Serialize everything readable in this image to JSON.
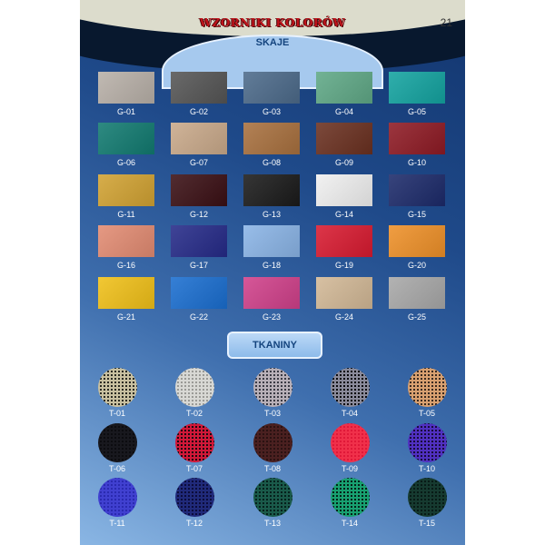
{
  "header": {
    "title": "WZORNIKI KOLORÓW",
    "page_number": "21",
    "section1": "SKAJE",
    "section2": "TKANINY"
  },
  "skaje": [
    {
      "code": "G-01",
      "color": "#b8b0a8"
    },
    {
      "code": "G-02",
      "color": "#555555"
    },
    {
      "code": "G-03",
      "color": "#4c6a8a"
    },
    {
      "code": "G-04",
      "color": "#5fa886"
    },
    {
      "code": "G-05",
      "color": "#13a3a0"
    },
    {
      "code": "G-06",
      "color": "#117a70"
    },
    {
      "code": "G-07",
      "color": "#c9a98a"
    },
    {
      "code": "G-08",
      "color": "#a8703e"
    },
    {
      "code": "G-09",
      "color": "#6a3020"
    },
    {
      "code": "G-10",
      "color": "#8e1a24"
    },
    {
      "code": "G-11",
      "color": "#d1a232"
    },
    {
      "code": "G-12",
      "color": "#3a0f14"
    },
    {
      "code": "G-13",
      "color": "#1a1a1a"
    },
    {
      "code": "G-14",
      "color": "#f0f0f0"
    },
    {
      "code": "G-15",
      "color": "#1c2a6a"
    },
    {
      "code": "G-16",
      "color": "#e28b72"
    },
    {
      "code": "G-17",
      "color": "#252a88"
    },
    {
      "code": "G-18",
      "color": "#8ab4e6"
    },
    {
      "code": "G-19",
      "color": "#d81a30"
    },
    {
      "code": "G-20",
      "color": "#ee9028"
    },
    {
      "code": "G-21",
      "color": "#f0c018"
    },
    {
      "code": "G-22",
      "color": "#1a6ed0"
    },
    {
      "code": "G-23",
      "color": "#d0408a"
    },
    {
      "code": "G-24",
      "color": "#d2b896"
    },
    {
      "code": "G-25",
      "color": "#a8a8a8"
    }
  ],
  "tkaniny": [
    {
      "code": "T-01",
      "color": "#2a2a22",
      "thread": "#c8c0a0"
    },
    {
      "code": "T-02",
      "color": "#9a9a96",
      "thread": "#d8d8d4"
    },
    {
      "code": "T-03",
      "color": "#3a3a44",
      "thread": "#b8b0b8"
    },
    {
      "code": "T-04",
      "color": "#0a0a0e",
      "thread": "#8a8a9a"
    },
    {
      "code": "T-05",
      "color": "#3a2a20",
      "thread": "#d8a070"
    },
    {
      "code": "T-06",
      "color": "#0c0c10",
      "thread": "#18181e"
    },
    {
      "code": "T-07",
      "color": "#1a0a10",
      "thread": "#d01838"
    },
    {
      "code": "T-08",
      "color": "#2a1212",
      "thread": "#4a2020"
    },
    {
      "code": "T-09",
      "color": "#e01838",
      "thread": "#f0304a"
    },
    {
      "code": "T-10",
      "color": "#180c3a",
      "thread": "#5030c0"
    },
    {
      "code": "T-11",
      "color": "#2a2ab0",
      "thread": "#4040d0"
    },
    {
      "code": "T-12",
      "color": "#0c0c3a",
      "thread": "#202a7a"
    },
    {
      "code": "T-13",
      "color": "#06201c",
      "thread": "#1a5a4a"
    },
    {
      "code": "T-14",
      "color": "#062018",
      "thread": "#18a070"
    },
    {
      "code": "T-15",
      "color": "#081a16",
      "thread": "#163a30"
    }
  ]
}
